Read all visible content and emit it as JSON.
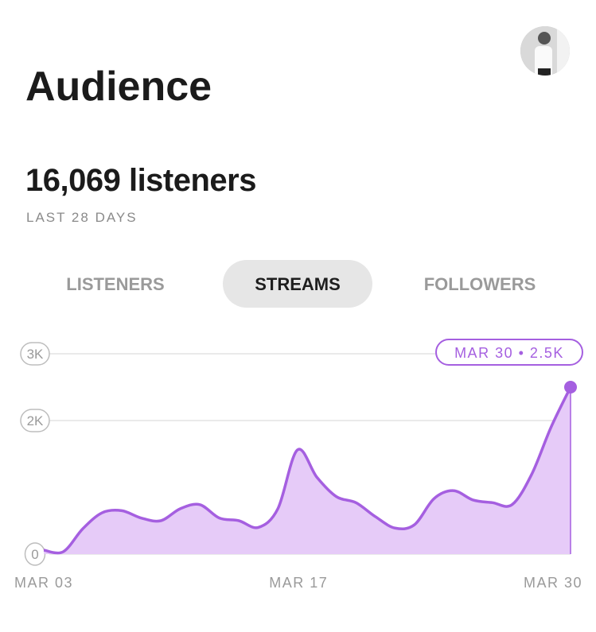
{
  "header": {
    "title": "Audience"
  },
  "stat": {
    "value": "16,069 listeners",
    "period": "LAST 28 DAYS"
  },
  "tabs": [
    {
      "label": "LISTENERS"
    },
    {
      "label": "STREAMS",
      "selected": true
    },
    {
      "label": "FOLLOWERS"
    }
  ],
  "chart_data": {
    "type": "area",
    "categories": [
      "MAR 03",
      null,
      null,
      null,
      null,
      null,
      null,
      null,
      null,
      null,
      null,
      null,
      null,
      null,
      "MAR 17",
      null,
      null,
      null,
      null,
      null,
      null,
      null,
      null,
      null,
      null,
      null,
      null,
      "MAR 30"
    ],
    "values": [
      60,
      36,
      380,
      620,
      650,
      540,
      500,
      680,
      740,
      540,
      500,
      400,
      680,
      1560,
      1150,
      860,
      770,
      560,
      390,
      440,
      830,
      950,
      810,
      770,
      740,
      1190,
      1900,
      2500
    ],
    "color": "#a55fe0",
    "fill": "#e6cbf8",
    "ylim": [
      0,
      3000
    ],
    "yticks": [
      {
        "value": 0,
        "label": "0"
      },
      {
        "value": 2000,
        "label": "2K"
      },
      {
        "value": 3000,
        "label": "3K"
      }
    ],
    "grid": true,
    "annotation": "MAR 30 • 2.5K"
  }
}
